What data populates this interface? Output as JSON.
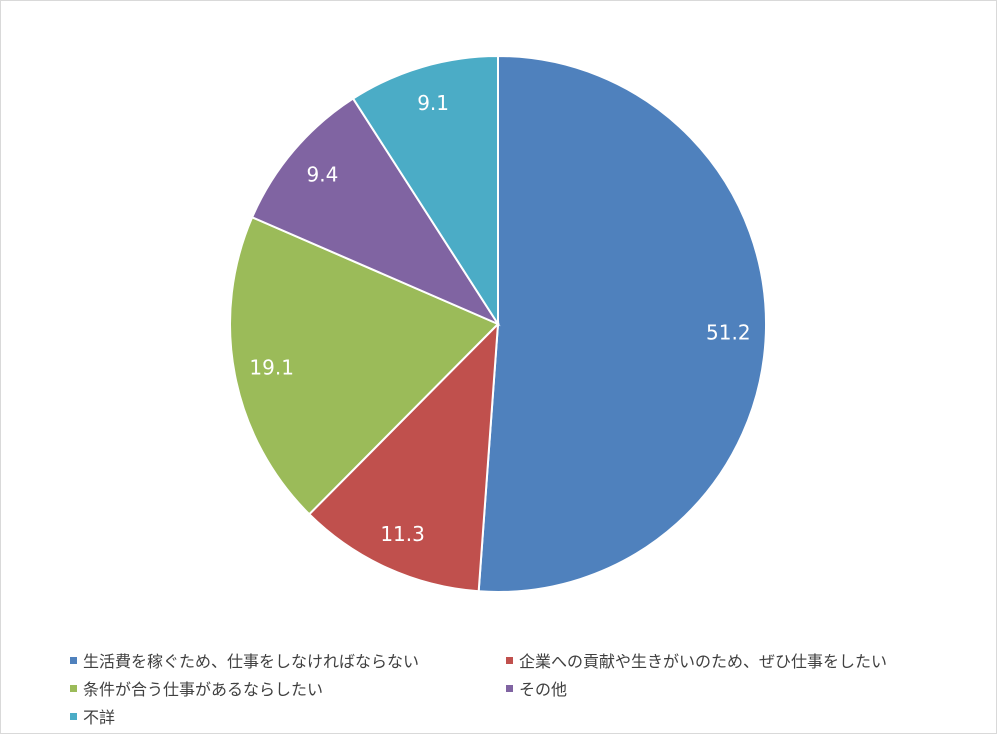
{
  "chart_data": {
    "type": "pie",
    "categories": [
      "生活費を稼ぐため、仕事をしなければならない",
      "企業への貢献や生きがいのため、ぜひ仕事をしたい",
      "条件が合う仕事があるならしたい",
      "その他",
      "不詳"
    ],
    "values": [
      51.2,
      11.3,
      19.1,
      9.4,
      9.1
    ],
    "colors": [
      "#4F81BD",
      "#C0504D",
      "#9BBB59",
      "#8064A2",
      "#4BACC6"
    ],
    "data_labels": [
      "51.2",
      "11.3",
      "19.1",
      "9.4",
      "9.1"
    ],
    "legend_position": "bottom",
    "start_angle": "12 o'clock",
    "direction": "clockwise"
  }
}
